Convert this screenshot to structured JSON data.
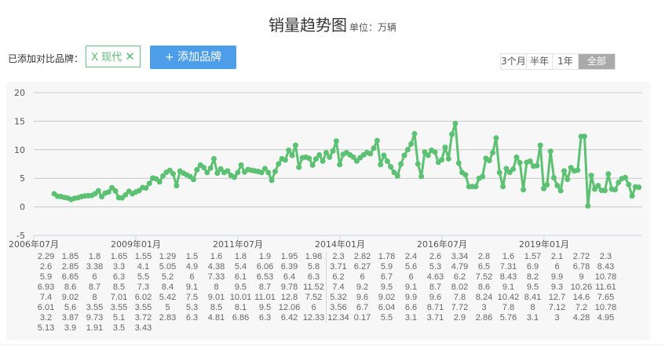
{
  "header": {
    "title": "销量趋势图",
    "unit": "单位：万辆"
  },
  "compare": {
    "label": "已添加对比品牌：",
    "brand_tag": "X 现代",
    "remove_icon": "close-icon",
    "add_button": "+ 添加品牌"
  },
  "range_buttons": [
    {
      "label": "3个月"
    },
    {
      "label": "半年"
    },
    {
      "label": "1年"
    },
    {
      "label": "全部",
      "active": true
    }
  ],
  "colors": {
    "series": "#5cc173",
    "accent": "#4d9de8",
    "active_range": "#aaaaaa"
  },
  "chart_data": {
    "type": "line",
    "title": "",
    "xlabel": "",
    "ylabel": "",
    "ylim": [
      -5,
      20
    ],
    "yticks": [
      -5,
      0,
      5,
      10,
      15,
      20
    ],
    "xticks": [
      "2006年07月",
      "2009年01月",
      "2011年07月",
      "2014年01月",
      "2016年07月",
      "2019年01月"
    ],
    "x_start": "2007-01",
    "x_end": "2021-05",
    "frequency": "monthly",
    "grid": true,
    "data_labels": true,
    "values": [
      2.29,
      1.85,
      1.8,
      1.65,
      1.55,
      1.29,
      1.5,
      1.6,
      1.8,
      1.9,
      1.95,
      1.98,
      2.3,
      2.82,
      1.78,
      2.4,
      2.6,
      3.34,
      2.8,
      1.6,
      1.57,
      2.1,
      2.72,
      2.3,
      2.6,
      2.85,
      3.38,
      3.3,
      4.1,
      5.05,
      4.9,
      4.38,
      5.4,
      6.06,
      6.39,
      5.8,
      3.71,
      6.27,
      5.9,
      5.6,
      5.3,
      4.79,
      6.5,
      7.31,
      6.9,
      6.0,
      6.78,
      8.43,
      5.9,
      6.65,
      6.0,
      6.3,
      5.5,
      5.2,
      6.0,
      7.33,
      6.1,
      6.53,
      6.4,
      6.3,
      6.2,
      6.0,
      6.7,
      6.0,
      4.63,
      6.2,
      7.52,
      8.43,
      8.2,
      9.9,
      9.0,
      10.78,
      6.93,
      8.6,
      8.7,
      8.5,
      7.3,
      8.4,
      9.1,
      8.0,
      9.5,
      8.7,
      9.78,
      11.52,
      7.4,
      9.2,
      9.5,
      9.1,
      8.7,
      8.02,
      8.6,
      9.1,
      9.5,
      9.3,
      10.26,
      11.61,
      7.4,
      9.02,
      8.0,
      7.01,
      6.02,
      5.42,
      7.5,
      9.01,
      10.01,
      11.01,
      12.8,
      7.52,
      5.32,
      9.6,
      9.02,
      9.9,
      9.6,
      7.8,
      8.24,
      10.42,
      8.41,
      12.7,
      14.6,
      7.65,
      6.01,
      5.6,
      3.55,
      3.55,
      3.55,
      5.0,
      5.3,
      8.5,
      8.1,
      9.5,
      12.06,
      6.0,
      3.56,
      6.7,
      6.04,
      6.6,
      8.71,
      7.72,
      3.0,
      7.8,
      8.0,
      7.12,
      7.2,
      10.78,
      3.2,
      3.87,
      9.73,
      5.1,
      3.72,
      2.83,
      6.3,
      4.81,
      6.86,
      6.3,
      6.42,
      12.33,
      12.34,
      0.17,
      5.5,
      3.1,
      3.71,
      2.9,
      2.86,
      5.76,
      3.1,
      3.0,
      4.28,
      4.95,
      5.13,
      3.9,
      1.91,
      3.5,
      3.43
    ]
  }
}
